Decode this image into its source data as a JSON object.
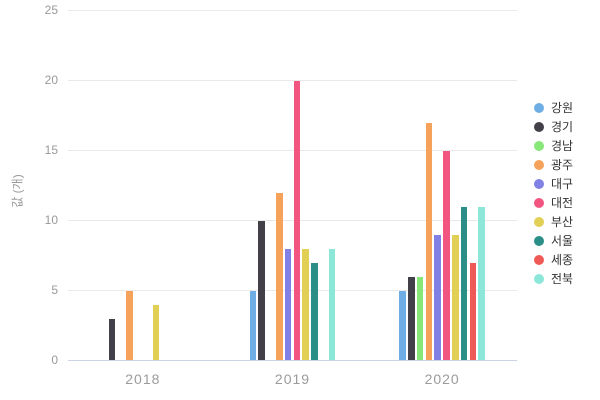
{
  "chart": {
    "colors": {
      "grid": "#e9e9e9",
      "axis_line": "#c9d3e4",
      "tick_label": "#999999",
      "legend_text": "#333333",
      "background": "#ffffff"
    }
  },
  "chart_data": {
    "type": "bar",
    "categories": [
      "2018",
      "2019",
      "2020"
    ],
    "series": [
      {
        "name": "강원",
        "color": "#6FAEE4",
        "values": [
          null,
          5,
          5
        ]
      },
      {
        "name": "경기",
        "color": "#434049",
        "values": [
          3,
          10,
          6
        ]
      },
      {
        "name": "경남",
        "color": "#87E878",
        "values": [
          null,
          null,
          6
        ]
      },
      {
        "name": "광주",
        "color": "#F7A25A",
        "values": [
          5,
          12,
          17
        ]
      },
      {
        "name": "대구",
        "color": "#8181E5",
        "values": [
          null,
          8,
          9
        ]
      },
      {
        "name": "대전",
        "color": "#F2557F",
        "values": [
          null,
          20,
          15
        ]
      },
      {
        "name": "부산",
        "color": "#E2CF55",
        "values": [
          4,
          8,
          9
        ]
      },
      {
        "name": "서울",
        "color": "#2B8E87",
        "values": [
          null,
          7,
          11
        ]
      },
      {
        "name": "세종",
        "color": "#F05A56",
        "values": [
          null,
          null,
          7
        ]
      },
      {
        "name": "전북",
        "color": "#8CE7D9",
        "values": [
          null,
          8,
          11
        ]
      }
    ],
    "title": "",
    "xlabel": "",
    "ylabel": "값 (개)",
    "ylim": [
      0,
      25
    ],
    "yticks": [
      0,
      5,
      10,
      15,
      20,
      25
    ],
    "grid": true,
    "legend_position": "right"
  }
}
